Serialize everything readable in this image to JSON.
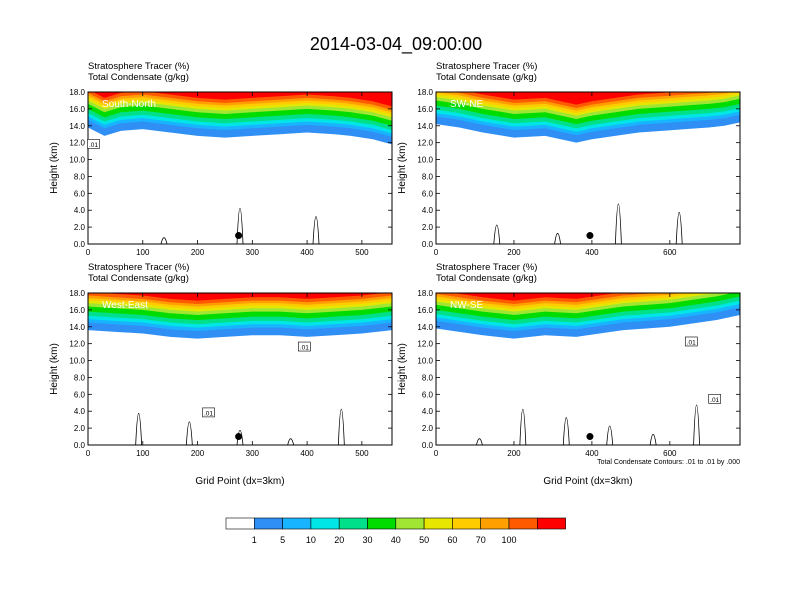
{
  "title": "2014-03-04_09:00:00",
  "chart_data": [
    {
      "type": "heatmap",
      "panel_label": "South-North",
      "header": [
        "Stratosphere Tracer   (%)",
        "Total Condensate   (g/kg)"
      ],
      "ylabel": "Height (km)",
      "xlabel": "",
      "xlim": [
        0,
        555
      ],
      "ylim": [
        0,
        18
      ],
      "xticks": [
        0,
        100,
        200,
        300,
        400,
        500
      ],
      "yticks": [
        "0.0",
        "2.0",
        "4.0",
        "6.0",
        "8.0",
        "10.0",
        "12.0",
        "14.0",
        "16.0",
        "18.0"
      ],
      "tracer_profile": {
        "x": [
          0,
          30,
          60,
          100,
          150,
          200,
          250,
          300,
          350,
          400,
          450,
          480,
          520,
          555
        ],
        "base_km": [
          13.8,
          12.8,
          13.4,
          13.6,
          13.2,
          12.8,
          12.6,
          12.8,
          13.0,
          13.2,
          13.0,
          12.8,
          12.4,
          11.8
        ]
      },
      "contour_label": ".01",
      "contour_label_at": [
        10,
        11.8
      ],
      "marker_at": [
        275,
        1.0
      ]
    },
    {
      "type": "heatmap",
      "panel_label": "SW-NE",
      "header": [
        "Stratosphere Tracer   (%)",
        "Total Condensate   (g/kg)"
      ],
      "ylabel": "Height (km)",
      "xlabel": "",
      "xlim": [
        0,
        780
      ],
      "ylim": [
        0,
        18
      ],
      "xticks": [
        0,
        200,
        400,
        600
      ],
      "yticks": [
        "0.0",
        "2.0",
        "4.0",
        "6.0",
        "8.0",
        "10.0",
        "12.0",
        "14.0",
        "16.0",
        "18.0"
      ],
      "tracer_profile": {
        "x": [
          0,
          60,
          120,
          200,
          280,
          360,
          400,
          460,
          520,
          580,
          640,
          700,
          740,
          780
        ],
        "base_km": [
          14.2,
          13.8,
          13.2,
          12.6,
          12.8,
          12.0,
          12.4,
          12.8,
          13.2,
          13.4,
          13.6,
          13.8,
          14.0,
          14.4
        ]
      },
      "contour_label": "",
      "contour_label_at": null,
      "marker_at": [
        395,
        1.0
      ]
    },
    {
      "type": "heatmap",
      "panel_label": "West-East",
      "header": [
        "Stratosphere Tracer   (%)",
        "Total Condensate   (g/kg)"
      ],
      "ylabel": "Height (km)",
      "xlabel": "Grid Point (dx=3km)",
      "xlim": [
        0,
        555
      ],
      "ylim": [
        0,
        18
      ],
      "xticks": [
        0,
        100,
        200,
        300,
        400,
        500
      ],
      "yticks": [
        "0.0",
        "2.0",
        "4.0",
        "6.0",
        "8.0",
        "10.0",
        "12.0",
        "14.0",
        "16.0",
        "18.0"
      ],
      "tracer_profile": {
        "x": [
          0,
          50,
          100,
          150,
          200,
          250,
          300,
          350,
          400,
          450,
          500,
          555
        ],
        "base_km": [
          13.6,
          13.4,
          13.2,
          12.8,
          12.6,
          12.8,
          13.0,
          13.0,
          12.8,
          13.0,
          13.2,
          13.6
        ]
      },
      "contour_label": ".01",
      "contour_label_at": [
        220,
        3.8
      ],
      "contour_label_2_at": [
        395,
        11.6
      ],
      "marker_at": [
        275,
        1.0
      ]
    },
    {
      "type": "heatmap",
      "panel_label": "NW-SE",
      "header": [
        "Stratosphere Tracer   (%)",
        "Total Condensate   (g/kg)"
      ],
      "ylabel": "Height (km)",
      "xlabel": "Grid Point (dx=3km)",
      "xlim": [
        0,
        780
      ],
      "ylim": [
        0,
        18
      ],
      "xticks": [
        0,
        200,
        400,
        600
      ],
      "yticks": [
        "0.0",
        "2.0",
        "4.0",
        "6.0",
        "8.0",
        "10.0",
        "12.0",
        "14.0",
        "16.0",
        "18.0"
      ],
      "tracer_profile": {
        "x": [
          0,
          60,
          120,
          200,
          280,
          360,
          420,
          480,
          540,
          600,
          660,
          720,
          780
        ],
        "base_km": [
          13.8,
          13.4,
          13.0,
          12.6,
          13.0,
          12.8,
          13.2,
          13.6,
          13.8,
          14.0,
          14.4,
          14.8,
          15.4
        ]
      },
      "contour_label": ".01",
      "contour_label_at": [
        655,
        12.2
      ],
      "contour_label_2_at": [
        715,
        5.4
      ],
      "marker_at": [
        395,
        1.0
      ],
      "footnote": "Total Condensate Contours: .01 to .01 by .000"
    }
  ],
  "colorbar": {
    "levels": [
      "1",
      "5",
      "10",
      "20",
      "30",
      "40",
      "50",
      "60",
      "70",
      "100"
    ],
    "colors": [
      "#ffffff",
      "#2f8ff5",
      "#19b4ff",
      "#00e6e6",
      "#00e08a",
      "#00dc00",
      "#a0e632",
      "#e6e600",
      "#ffcc00",
      "#ffa000",
      "#ff5a00",
      "#ff0000"
    ]
  }
}
